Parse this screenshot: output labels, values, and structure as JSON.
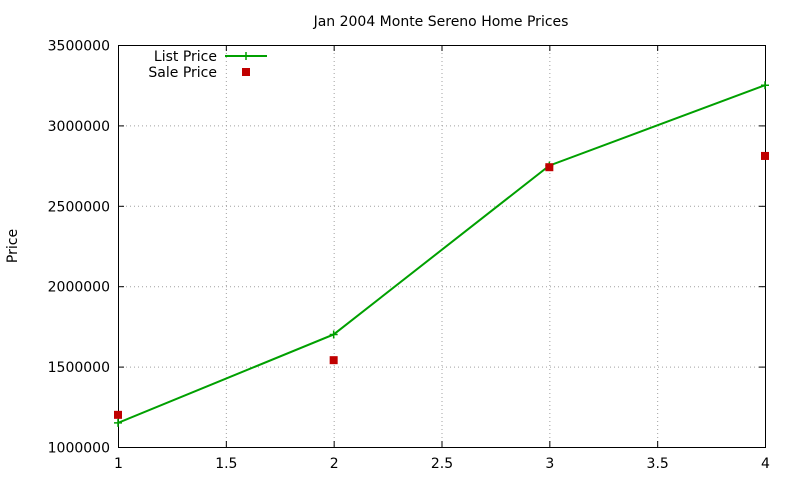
{
  "chart_data": {
    "type": "line",
    "title": "Jan 2004 Monte Sereno Home Prices",
    "xlabel": "",
    "ylabel": "Price",
    "xlim": [
      1,
      4
    ],
    "ylim": [
      1000000,
      3500000
    ],
    "x_ticks": [
      "1",
      "1.5",
      "2",
      "2.5",
      "3",
      "3.5",
      "4"
    ],
    "y_ticks": [
      "1000000",
      "1500000",
      "2000000",
      "2500000",
      "3000000",
      "3500000"
    ],
    "grid": true,
    "legend_position": "top-left",
    "series": [
      {
        "name": "List Price",
        "style": "line-points",
        "color": "#00a000",
        "x": [
          1,
          2,
          3,
          4
        ],
        "y": [
          1150000,
          1700000,
          2750000,
          3250000
        ]
      },
      {
        "name": "Sale Price",
        "style": "points",
        "color": "#c00000",
        "x": [
          1,
          2,
          3,
          4
        ],
        "y": [
          1200000,
          1540000,
          2740000,
          2810000
        ]
      }
    ]
  }
}
